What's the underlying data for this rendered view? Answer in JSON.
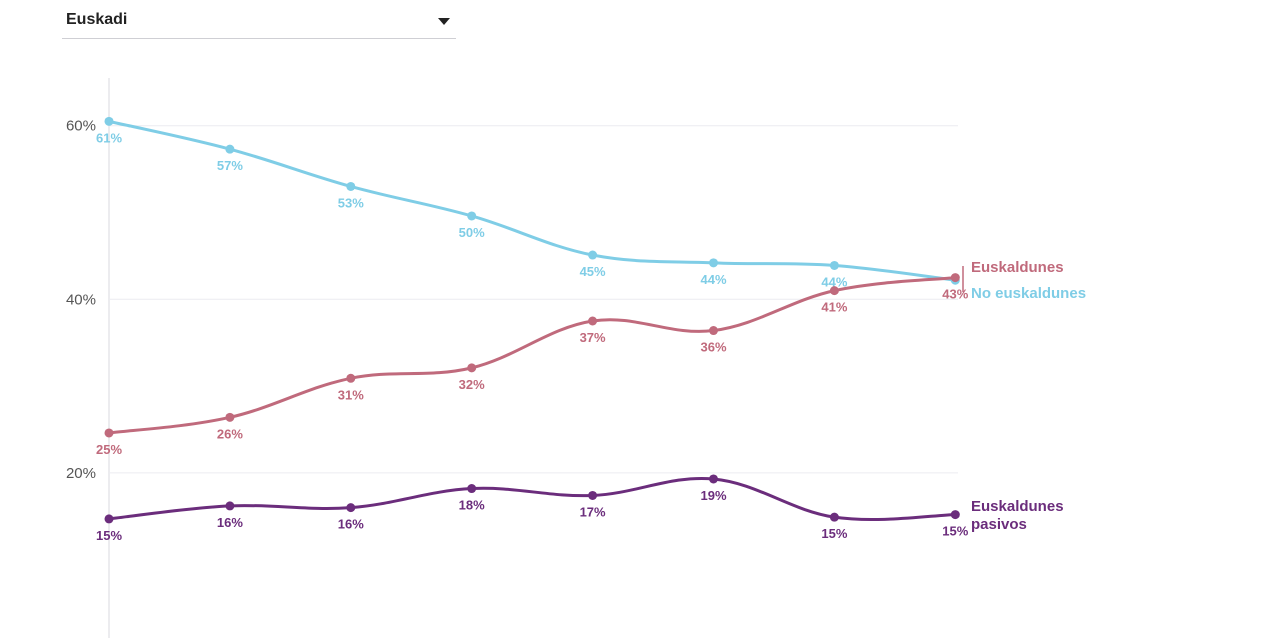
{
  "selector": {
    "value": "Euskadi"
  },
  "chart_data": {
    "type": "line",
    "title": "",
    "xlabel": "",
    "ylabel": "",
    "ylim": [
      0,
      66
    ],
    "yticks": [
      20,
      40,
      60
    ],
    "ytick_labels": [
      "20%",
      "40%",
      "60%"
    ],
    "grid": true,
    "series": [
      {
        "name": "No euskaldunes",
        "color": "#7fcde6",
        "values": [
          60.5,
          57.3,
          53.0,
          49.6,
          45.1,
          44.2,
          43.9,
          42.2
        ],
        "labels": [
          "61%",
          "57%",
          "53%",
          "50%",
          "45%",
          "44%",
          "44%",
          ""
        ],
        "label_pos": "below"
      },
      {
        "name": "Euskaldunes",
        "color": "#c06a7c",
        "values": [
          24.6,
          26.4,
          30.9,
          32.1,
          37.5,
          36.4,
          41.0,
          42.5
        ],
        "labels": [
          "25%",
          "26%",
          "31%",
          "32%",
          "37%",
          "36%",
          "41%",
          "43%"
        ],
        "label_pos": "below"
      },
      {
        "name": "Euskaldunes pasivos",
        "name_lines": [
          "Euskaldunes",
          "pasivos"
        ],
        "color": "#6b2d7c",
        "values": [
          14.7,
          16.2,
          16.0,
          18.2,
          17.4,
          19.3,
          14.9,
          15.2
        ],
        "labels": [
          "15%",
          "16%",
          "16%",
          "18%",
          "17%",
          "19%",
          "15%",
          "15%"
        ],
        "label_pos": "below"
      }
    ]
  }
}
